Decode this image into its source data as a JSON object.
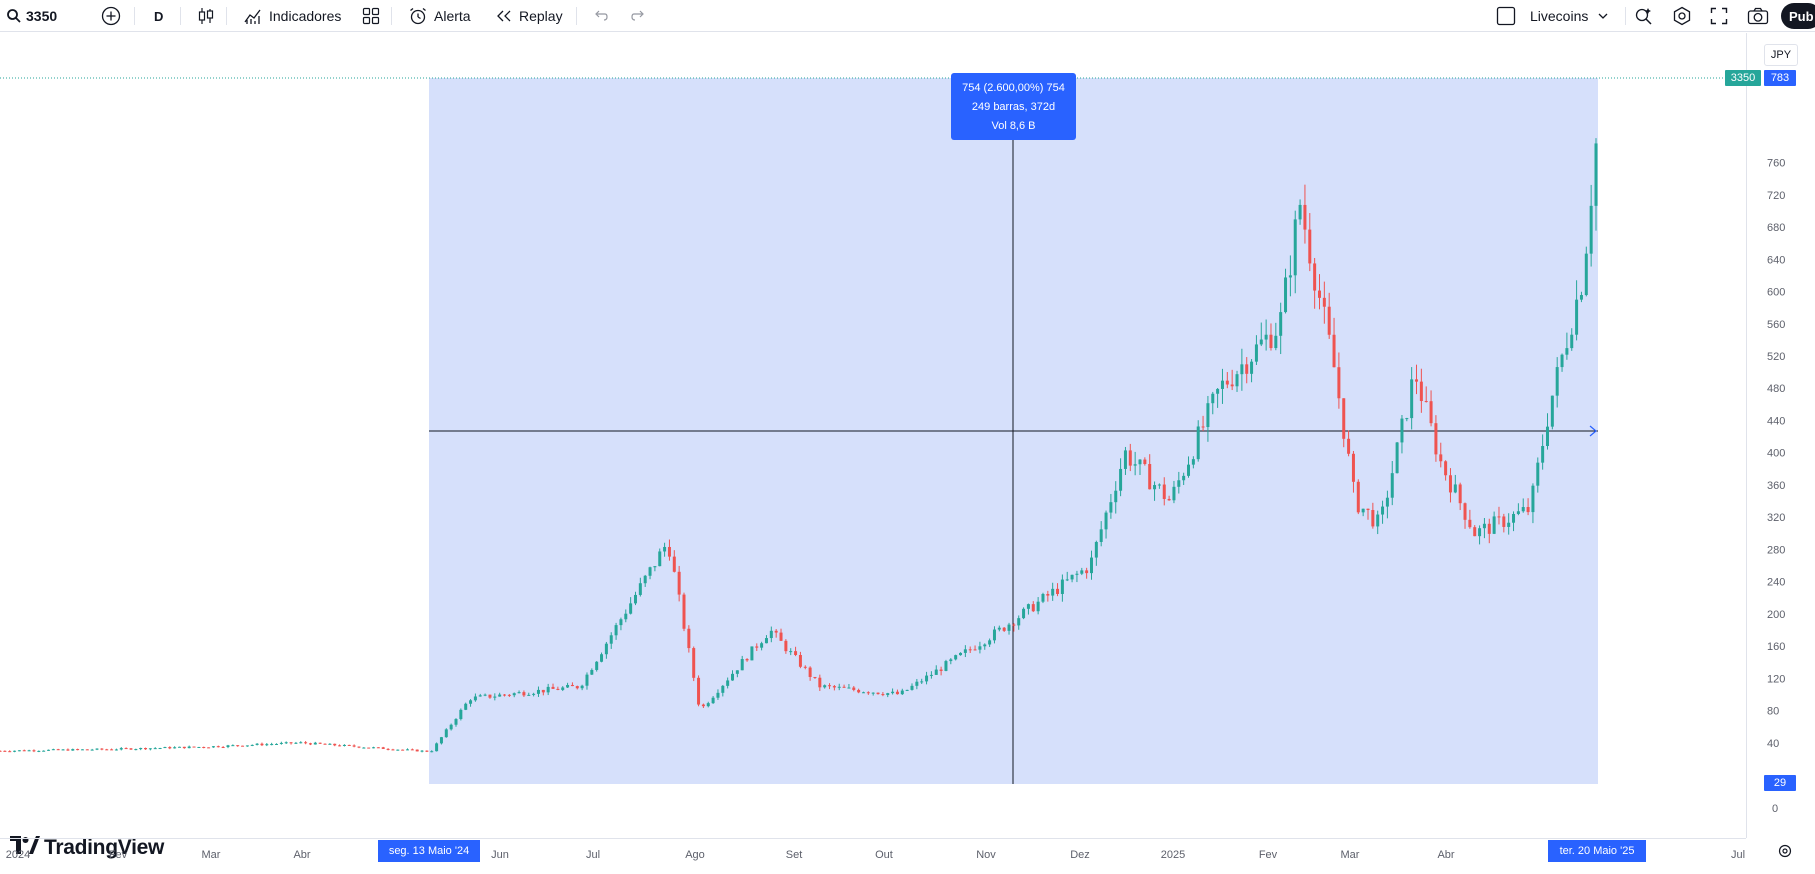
{
  "toolbar": {
    "symbol": "3350",
    "interval": "D",
    "indicators_label": "Indicadores",
    "alert_label": "Alerta",
    "replay_label": "Replay",
    "account_label": "Livecoins",
    "publish_label": "Pub"
  },
  "chart": {
    "currency": "JPY",
    "brand": "TradingView",
    "measure_tooltip": {
      "line1": "754 (2.600,00%) 754",
      "line2": "249 barras, 372d",
      "line3": "Vol 8,6 B"
    },
    "price_labels": {
      "symbol_tag": "3350",
      "top_value": "783",
      "bottom_value": "29",
      "zero": "0"
    },
    "date_labels": {
      "start": "seg. 13 Maio '24",
      "end": "ter. 20 Maio '25"
    },
    "colors": {
      "up": "#26a69a",
      "down": "#ef5350",
      "selection": "#2962ff",
      "range_fill": "#d6e0fb"
    }
  },
  "chart_data": {
    "type": "candlestick",
    "y_axis_ticks": [
      40,
      80,
      120,
      160,
      200,
      240,
      280,
      320,
      360,
      400,
      440,
      480,
      520,
      560,
      600,
      640,
      680,
      720,
      760
    ],
    "x_axis_ticks": [
      "2024",
      "Fev",
      "Mar",
      "Abr",
      "Jun",
      "Jul",
      "Ago",
      "Set",
      "Out",
      "Nov",
      "Dez",
      "2025",
      "Fev",
      "Mar",
      "Abr",
      "Jul"
    ],
    "ylim": [
      0,
      790
    ],
    "measured_range": {
      "start_date": "seg. 13 Maio '24",
      "end_date": "ter. 20 Maio '25",
      "change": "754 (2.600,00%)",
      "bars": 249,
      "days": 372,
      "volume": "8,6 B"
    },
    "price_path": [
      [
        "2024-01",
        30
      ],
      [
        "2024-02",
        32
      ],
      [
        "2024-03",
        35
      ],
      [
        "2024-04",
        40
      ],
      [
        "2024-05-13",
        29
      ],
      [
        "2024-06",
        95
      ],
      [
        "2024-07",
        110
      ],
      [
        "2024-07-25",
        290
      ],
      [
        "2024-08",
        80
      ],
      [
        "2024-08-20",
        180
      ],
      [
        "2024-09",
        110
      ],
      [
        "2024-10",
        100
      ],
      [
        "2024-11",
        180
      ],
      [
        "2024-12",
        260
      ],
      [
        "2024-12-20",
        400
      ],
      [
        "2025-01",
        340
      ],
      [
        "2025-01-20",
        480
      ],
      [
        "2025-02",
        560
      ],
      [
        "2025-02-10",
        710
      ],
      [
        "2025-02-25",
        500
      ],
      [
        "2025-03",
        340
      ],
      [
        "2025-03-20",
        310
      ],
      [
        "2025-04",
        500
      ],
      [
        "2025-04-10",
        390
      ],
      [
        "2025-04-20",
        300
      ],
      [
        "2025-05",
        330
      ],
      [
        "2025-05-10",
        460
      ],
      [
        "2025-05-15",
        620
      ],
      [
        "2025-05-20",
        783
      ]
    ]
  }
}
